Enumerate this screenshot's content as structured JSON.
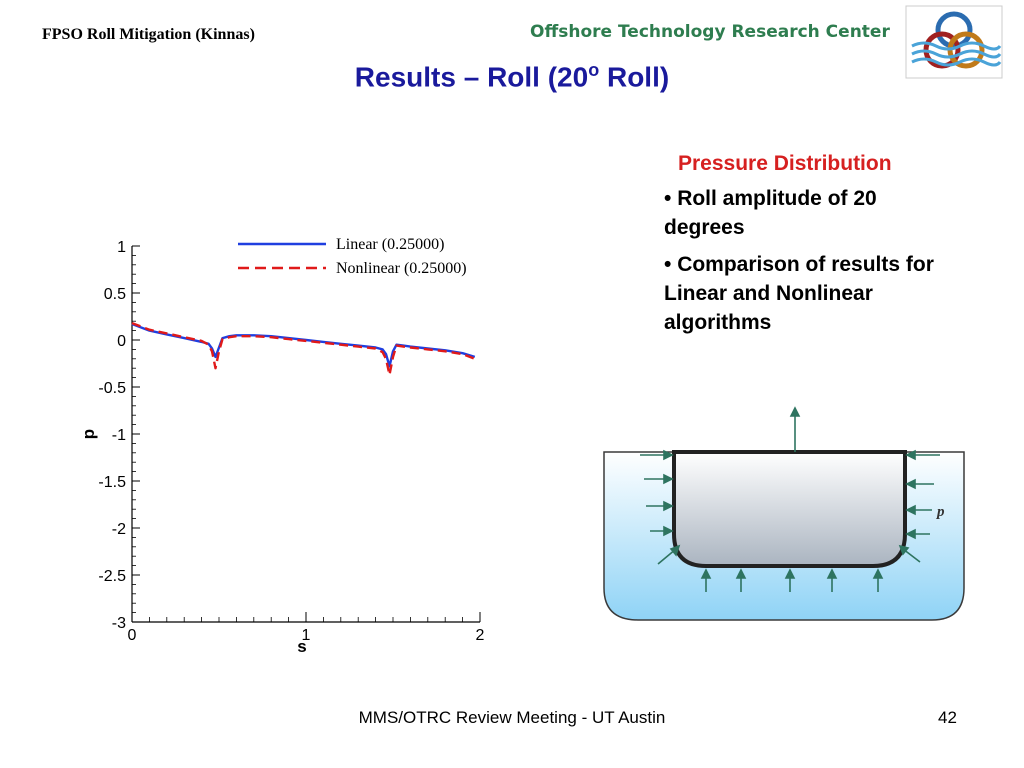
{
  "header": {
    "left_label": "FPSO Roll Mitigation (Kinnas)",
    "org_name": "Offshore Technology Research Center"
  },
  "title": {
    "main": "Results – Roll (20",
    "sup": "o",
    "tail": " Roll)"
  },
  "panel": {
    "heading": "Pressure Distribution",
    "bullets": [
      "Roll amplitude of 20 degrees",
      "Comparison of results for Linear and Nonlinear algorithms"
    ]
  },
  "diagram": {
    "pressure_label": "p"
  },
  "footer": {
    "text": "MMS/OTRC Review Meeting - UT Austin",
    "page": "42"
  },
  "colors": {
    "title": "#1a1a9c",
    "heading": "#d62020",
    "linear": "#1f3fe0",
    "nonlinear": "#e01a1a",
    "org": "#2e7d4f",
    "water": "#a9dcf7",
    "hull": "#c4ccd5"
  },
  "chart_data": {
    "type": "line",
    "xlabel": "s",
    "ylabel": "p",
    "xlim": [
      0,
      2
    ],
    "ylim": [
      -3,
      1
    ],
    "xticks": [
      "0",
      "1",
      "2"
    ],
    "yticks": [
      "1",
      "0.5",
      "0",
      "-0.5",
      "-1",
      "-1.5",
      "-2",
      "-2.5",
      "-3"
    ],
    "legend_position": "top",
    "series": [
      {
        "name": "Linear (0.25000)",
        "style": "solid",
        "x": [
          0,
          0.1,
          0.2,
          0.3,
          0.4,
          0.44,
          0.46,
          0.48,
          0.5,
          0.52,
          0.56,
          0.6,
          0.7,
          0.8,
          0.9,
          1.0,
          1.1,
          1.2,
          1.3,
          1.4,
          1.44,
          1.46,
          1.48,
          1.5,
          1.52,
          1.56,
          1.6,
          1.7,
          1.8,
          1.9,
          1.97
        ],
        "y": [
          0.17,
          0.1,
          0.06,
          0.02,
          -0.02,
          -0.04,
          -0.09,
          -0.18,
          -0.08,
          0.02,
          0.04,
          0.05,
          0.05,
          0.04,
          0.02,
          0.0,
          -0.02,
          -0.04,
          -0.06,
          -0.08,
          -0.1,
          -0.15,
          -0.28,
          -0.12,
          -0.05,
          -0.06,
          -0.07,
          -0.09,
          -0.11,
          -0.14,
          -0.18
        ]
      },
      {
        "name": "Nonlinear (0.25000)",
        "style": "dashed",
        "x": [
          0,
          0.1,
          0.2,
          0.3,
          0.4,
          0.44,
          0.46,
          0.48,
          0.5,
          0.52,
          0.56,
          0.6,
          0.7,
          0.8,
          0.9,
          1.0,
          1.1,
          1.2,
          1.3,
          1.4,
          1.44,
          1.46,
          1.48,
          1.5,
          1.52,
          1.56,
          1.6,
          1.7,
          1.8,
          1.9,
          1.97
        ],
        "y": [
          0.18,
          0.11,
          0.07,
          0.03,
          -0.01,
          -0.05,
          -0.12,
          -0.3,
          -0.12,
          0.01,
          0.03,
          0.04,
          0.04,
          0.03,
          0.01,
          -0.01,
          -0.03,
          -0.05,
          -0.07,
          -0.09,
          -0.13,
          -0.2,
          -0.37,
          -0.18,
          -0.06,
          -0.07,
          -0.08,
          -0.1,
          -0.12,
          -0.15,
          -0.2
        ]
      }
    ]
  }
}
